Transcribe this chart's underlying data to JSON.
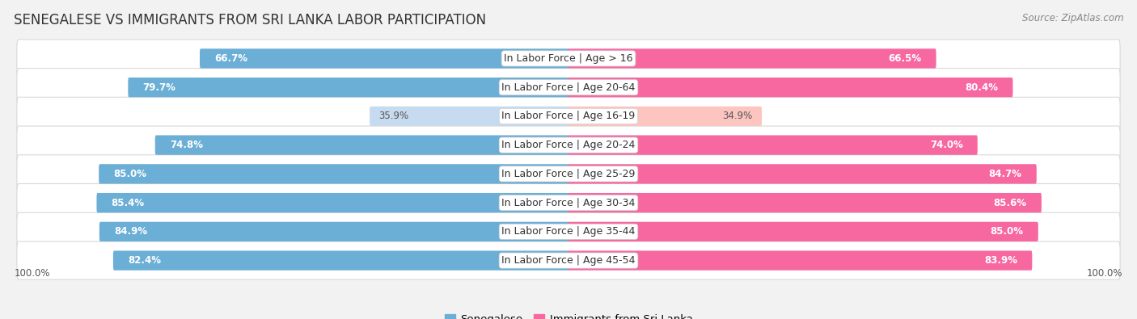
{
  "title": "SENEGALESE VS IMMIGRANTS FROM SRI LANKA LABOR PARTICIPATION",
  "source": "Source: ZipAtlas.com",
  "categories": [
    "In Labor Force | Age > 16",
    "In Labor Force | Age 20-64",
    "In Labor Force | Age 16-19",
    "In Labor Force | Age 20-24",
    "In Labor Force | Age 25-29",
    "In Labor Force | Age 30-34",
    "In Labor Force | Age 35-44",
    "In Labor Force | Age 45-54"
  ],
  "senegalese": [
    66.7,
    79.7,
    35.9,
    74.8,
    85.0,
    85.4,
    84.9,
    82.4
  ],
  "sri_lanka": [
    66.5,
    80.4,
    34.9,
    74.0,
    84.7,
    85.6,
    85.0,
    83.9
  ],
  "senegalese_color_strong": "#6baed6",
  "senegalese_color_light": "#c6dbef",
  "sri_lanka_color_strong": "#f768a1",
  "sri_lanka_color_light": "#fcc5c0",
  "bg_color": "#f2f2f2",
  "row_bg_color": "#ffffff",
  "row_border_color": "#d8d8d8",
  "legend_senegalese": "Senegalese",
  "legend_sri_lanka": "Immigrants from Sri Lanka",
  "axis_label_left": "100.0%",
  "axis_label_right": "100.0%",
  "max_val": 100.0,
  "threshold_low": 50,
  "title_fontsize": 12,
  "label_fontsize": 9,
  "value_fontsize": 8.5,
  "source_fontsize": 8.5
}
